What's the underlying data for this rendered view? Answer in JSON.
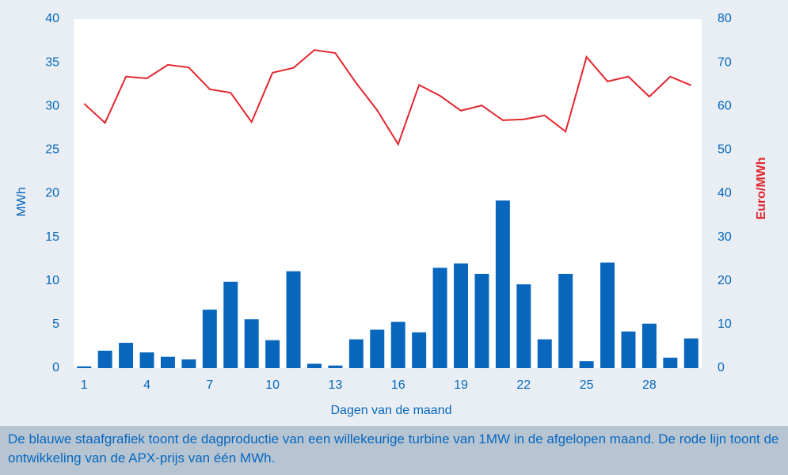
{
  "chart_data": {
    "type": "bar_line",
    "xlabel": "Dagen van de maand",
    "ylabel": "MWh",
    "y2label": "Euro/MWh",
    "categories": [
      "1",
      null,
      null,
      "4",
      null,
      null,
      "7",
      null,
      null,
      "10",
      null,
      null,
      "13",
      null,
      null,
      "16",
      null,
      null,
      "19",
      null,
      null,
      "22",
      null,
      null,
      "25",
      null,
      null,
      "28",
      null,
      null
    ],
    "series": [
      {
        "type": "bar",
        "color": "#0867bd",
        "axis": "y",
        "values": [
          0.2,
          2.0,
          2.9,
          1.8,
          1.3,
          1.0,
          6.7,
          9.9,
          5.6,
          3.2,
          11.1,
          0.5,
          0.3,
          3.3,
          4.4,
          5.3,
          4.1,
          11.5,
          12.0,
          10.8,
          19.2,
          9.6,
          3.3,
          10.8,
          0.8,
          12.1,
          4.2,
          5.1,
          1.2,
          3.4
        ]
      },
      {
        "type": "line",
        "color": "#e3262e",
        "axis": "y2",
        "values": [
          60.6,
          56.2,
          66.8,
          66.4,
          69.5,
          68.9,
          63.9,
          63.1,
          56.4,
          67.7,
          68.8,
          72.9,
          72.2,
          65.3,
          59.1,
          51.3,
          64.9,
          62.4,
          59.0,
          60.2,
          56.8,
          57.0,
          57.9,
          54.2,
          71.3,
          65.7,
          66.8,
          62.2,
          66.8,
          64.8
        ]
      }
    ],
    "ylim": [
      0,
      40
    ],
    "yticks": [
      0,
      5,
      10,
      15,
      20,
      25,
      30,
      35,
      40
    ],
    "y2lim": [
      0,
      80
    ],
    "y2ticks": [
      0,
      10,
      20,
      30,
      40,
      50,
      60,
      70,
      80
    ],
    "caption": "De blauwe staafgrafiek toont de dagproductie van een willekeurige turbine van 1MW in de afgelopen maand. De rode lijn toont de ontwikkeling van de APX-prijs van één MWh."
  }
}
